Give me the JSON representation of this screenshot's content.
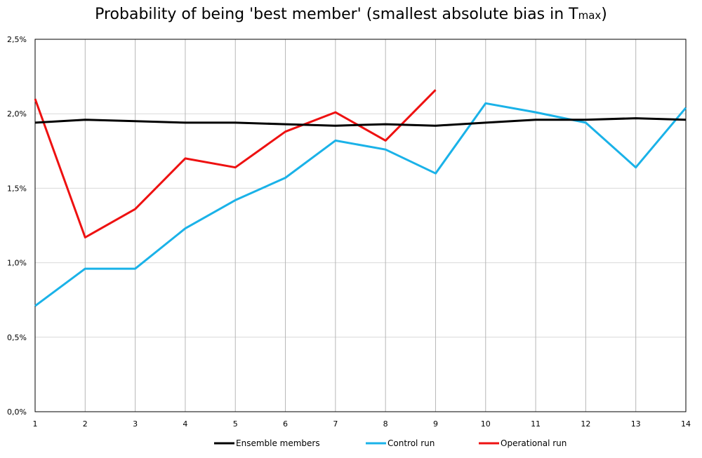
{
  "chart_data": {
    "type": "line",
    "title": "Probability of being 'best member' (smallest absolute bias in T",
    "title_subscript": "max",
    "title_close": ")",
    "x": [
      1,
      2,
      3,
      4,
      5,
      6,
      7,
      8,
      9,
      10,
      11,
      12,
      13,
      14
    ],
    "x_tick_labels": [
      "1",
      "2",
      "3",
      "4",
      "5",
      "6",
      "7",
      "8",
      "9",
      "10",
      "11",
      "12",
      "13",
      "14"
    ],
    "y_tick_values": [
      0,
      0.5,
      1.0,
      1.5,
      2.0,
      2.5
    ],
    "y_tick_labels": [
      "0,0%",
      "0,5%",
      "1,0%",
      "1,5%",
      "2,0%",
      "2,5%"
    ],
    "xlim": [
      1,
      14
    ],
    "ylim": [
      0,
      2.5
    ],
    "grid": {
      "vertical": true,
      "horizontal": true
    },
    "legend_position": "bottom",
    "series": [
      {
        "name": "Ensemble members",
        "color": "#000000",
        "values": [
          1.94,
          1.96,
          1.95,
          1.94,
          1.94,
          1.93,
          1.92,
          1.93,
          1.92,
          1.94,
          1.96,
          1.96,
          1.97,
          1.96
        ]
      },
      {
        "name": "Control run",
        "color": "#1ab2e8",
        "values": [
          0.71,
          0.96,
          0.96,
          1.23,
          1.42,
          1.57,
          1.82,
          1.76,
          1.6,
          2.07,
          2.01,
          1.94,
          1.64,
          2.04
        ]
      },
      {
        "name": "Operational run",
        "color": "#ee1111",
        "values": [
          2.1,
          1.17,
          1.36,
          1.7,
          1.64,
          1.88,
          2.01,
          1.82,
          2.16,
          null,
          null,
          null,
          null,
          null
        ]
      }
    ]
  }
}
